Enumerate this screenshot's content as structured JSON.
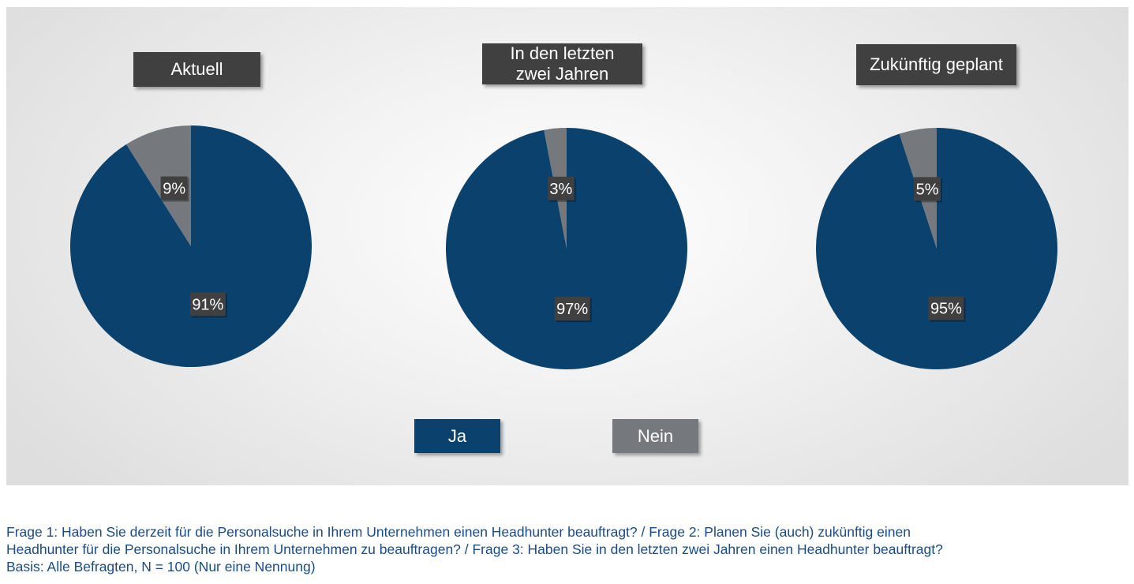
{
  "chart_data": [
    {
      "type": "pie",
      "title": "Aktuell",
      "labels": [
        "Ja",
        "Nein"
      ],
      "values": [
        91,
        9
      ],
      "value_labels": [
        "91%",
        "9%"
      ],
      "colors": [
        "#0b416d",
        "#75797d"
      ]
    },
    {
      "type": "pie",
      "title": "In den letzten\nzwei Jahren",
      "labels": [
        "Ja",
        "Nein"
      ],
      "values": [
        97,
        3
      ],
      "value_labels": [
        "97%",
        "3%"
      ],
      "colors": [
        "#0b416d",
        "#75797d"
      ]
    },
    {
      "type": "pie",
      "title": "Zukünftig geplant",
      "labels": [
        "Ja",
        "Nein"
      ],
      "values": [
        95,
        5
      ],
      "value_labels": [
        "95%",
        "5%"
      ],
      "colors": [
        "#0b416d",
        "#75797d"
      ]
    }
  ],
  "legend": {
    "items": [
      {
        "label": "Ja",
        "color": "#0b416d"
      },
      {
        "label": "Nein",
        "color": "#75797d"
      }
    ]
  },
  "footnote": {
    "line1": "Frage 1: Haben Sie derzeit für die Personalsuche in Ihrem Unternehmen einen Headhunter beauftragt? / Frage 2: Planen Sie (auch) zukünftig einen",
    "line2": "Headhunter für die Personalsuche in Ihrem Unternehmen zu beauftragen? / Frage 3: Haben Sie in den letzten zwei Jahren einen Headhunter beauftragt?",
    "line3": "Basis: Alle Befragten, N = 100 (Nur eine Nennung)"
  }
}
